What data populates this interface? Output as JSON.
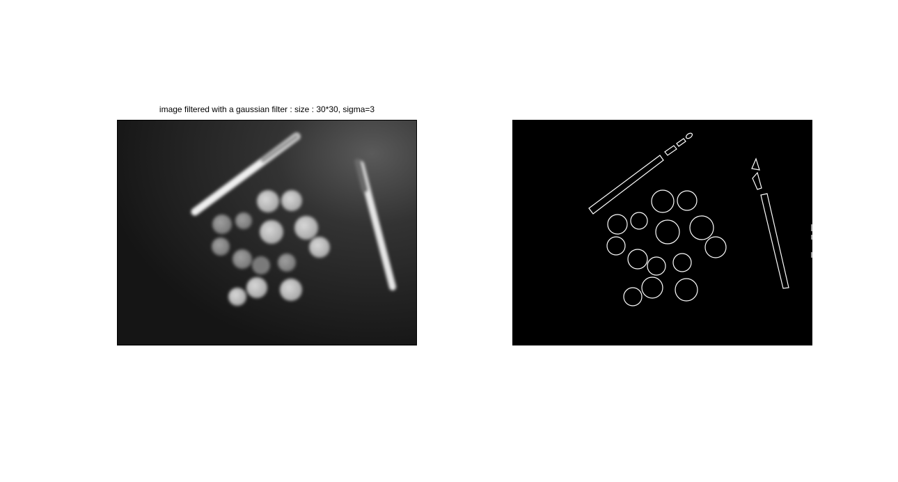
{
  "figure": {
    "background": "#ffffff",
    "left_axes": {
      "title": "image filtered with a gaussian filter : size : 30*30, sigma=3",
      "image_description_kind": "blurred grayscale photo",
      "colors": {
        "background": "#202020",
        "coin": "#c8c8c8",
        "pen": "#eeeeee"
      }
    },
    "right_axes": {
      "title": "",
      "image_description_kind": "edge map",
      "colors": {
        "background": "#000000",
        "edge": "#ffffff"
      }
    }
  }
}
